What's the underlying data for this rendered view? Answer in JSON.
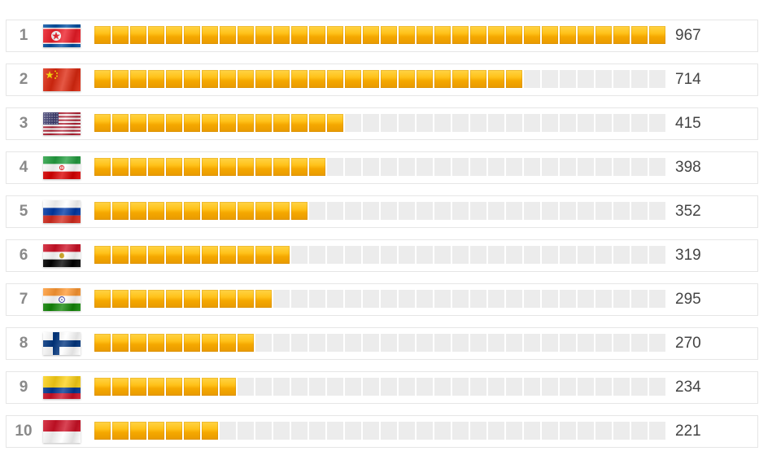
{
  "chart_data": {
    "type": "bar",
    "orientation": "horizontal",
    "ranks": [
      "1",
      "2",
      "3",
      "4",
      "5",
      "6",
      "7",
      "8",
      "9",
      "10"
    ],
    "categories": [
      "North Korea",
      "China",
      "United States",
      "Iran",
      "Russia",
      "Egypt",
      "India",
      "Finland",
      "Colombia",
      "Indonesia"
    ],
    "flags": [
      "flag-north-korea-icon",
      "flag-china-icon",
      "flag-usa-icon",
      "flag-iran-icon",
      "flag-russia-icon",
      "flag-egypt-icon",
      "flag-india-icon",
      "flag-finland-icon",
      "flag-colombia-icon",
      "flag-indonesia-icon"
    ],
    "values": [
      967,
      714,
      415,
      398,
      352,
      319,
      295,
      270,
      234,
      221
    ],
    "value_labels": [
      "967",
      "714",
      "415",
      "398",
      "352",
      "319",
      "295",
      "270",
      "234",
      "221"
    ],
    "xlim": [
      0,
      967
    ],
    "segments": 32,
    "grid": false,
    "legend": "none"
  },
  "colors": {
    "bar_fill": "#f5a800",
    "bar_highlight": "#ffd447",
    "track": "#ececec",
    "rank_text": "#8a8a8a",
    "value_text": "#444444",
    "row_border": "#e6e6e6"
  }
}
